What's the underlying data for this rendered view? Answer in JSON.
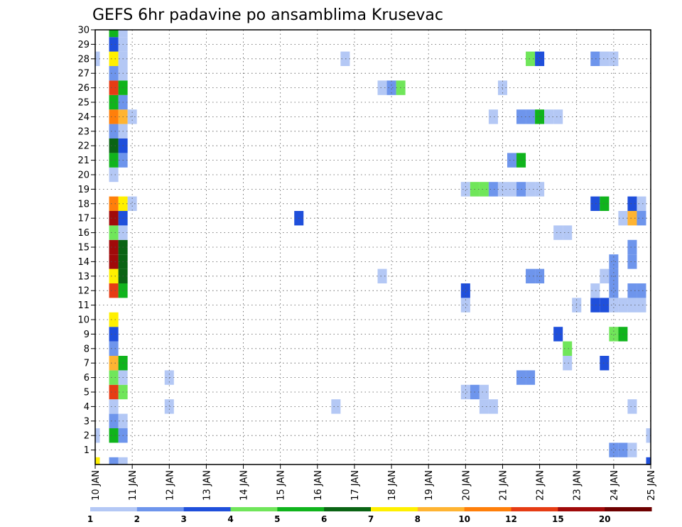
{
  "chart_data": {
    "type": "heatmap",
    "title": "GEFS 6hr padavine po ansamblima Krusevac",
    "xlabel": "",
    "ylabel": "",
    "x_ticks": [
      "10 JAN",
      "11 JAN",
      "12 JAN",
      "13 JAN",
      "14 JAN",
      "15 JAN",
      "16 JAN",
      "17 JAN",
      "18 JAN",
      "19 JAN",
      "20 JAN",
      "21 JAN",
      "22 JAN",
      "23 JAN",
      "24 JAN",
      "25 JAN"
    ],
    "x_range_days": [
      10,
      25
    ],
    "y_ticks": [
      1,
      2,
      3,
      4,
      5,
      6,
      7,
      8,
      9,
      10,
      11,
      12,
      13,
      14,
      15,
      16,
      17,
      18,
      19,
      20,
      21,
      22,
      23,
      24,
      25,
      26,
      27,
      28,
      29,
      30
    ],
    "y_range": [
      0,
      30
    ],
    "grid": "dotted",
    "time_step_hours": 6,
    "colors": {
      "1": "#b4c8f5",
      "2": "#6e95ec",
      "3": "#1f4fdb",
      "4": "#70e65a",
      "5": "#10b41c",
      "6": "#0a6414",
      "7": "#fff000",
      "8": "#ffb432",
      "10": "#ff7f0a",
      "12": "#e63c14",
      "15": "#a00a0a",
      "20": "#6e0000"
    },
    "legend": {
      "labels": [
        "1",
        "2",
        "3",
        "4",
        "5",
        "6",
        "7",
        "8",
        "10",
        "12",
        "15",
        "20"
      ],
      "colors": [
        "#b4c8f5",
        "#6e95ec",
        "#1f4fdb",
        "#70e65a",
        "#10b41c",
        "#0a6414",
        "#fff000",
        "#ffb432",
        "#ff7f0a",
        "#e63c14",
        "#a00a0a",
        "#6e0000"
      ]
    },
    "cells": [
      {
        "member": 0,
        "day": 10.0,
        "level": "7"
      },
      {
        "member": 0,
        "day": 10.5,
        "level": "2"
      },
      {
        "member": 0,
        "day": 10.75,
        "level": "1"
      },
      {
        "member": 0,
        "day": 25.0,
        "level": "3"
      },
      {
        "member": 1,
        "day": 24.0,
        "level": "2"
      },
      {
        "member": 1,
        "day": 24.25,
        "level": "2"
      },
      {
        "member": 1,
        "day": 24.5,
        "level": "1"
      },
      {
        "member": 2,
        "day": 10.0,
        "level": "1"
      },
      {
        "member": 2,
        "day": 10.5,
        "level": "5"
      },
      {
        "member": 2,
        "day": 10.75,
        "level": "2"
      },
      {
        "member": 2,
        "day": 25.0,
        "level": "1"
      },
      {
        "member": 3,
        "day": 10.5,
        "level": "2"
      },
      {
        "member": 3,
        "day": 10.75,
        "level": "1"
      },
      {
        "member": 4,
        "day": 10.5,
        "level": "1"
      },
      {
        "member": 4,
        "day": 12.0,
        "level": "1"
      },
      {
        "member": 4,
        "day": 16.5,
        "level": "1"
      },
      {
        "member": 4,
        "day": 20.5,
        "level": "1"
      },
      {
        "member": 4,
        "day": 20.75,
        "level": "1"
      },
      {
        "member": 4,
        "day": 24.5,
        "level": "1"
      },
      {
        "member": 5,
        "day": 10.5,
        "level": "12"
      },
      {
        "member": 5,
        "day": 10.75,
        "level": "4"
      },
      {
        "member": 5,
        "day": 20.0,
        "level": "1"
      },
      {
        "member": 5,
        "day": 20.25,
        "level": "2"
      },
      {
        "member": 5,
        "day": 20.5,
        "level": "1"
      },
      {
        "member": 6,
        "day": 10.5,
        "level": "4"
      },
      {
        "member": 6,
        "day": 10.75,
        "level": "1"
      },
      {
        "member": 6,
        "day": 12.0,
        "level": "1"
      },
      {
        "member": 6,
        "day": 21.5,
        "level": "2"
      },
      {
        "member": 6,
        "day": 21.75,
        "level": "2"
      },
      {
        "member": 7,
        "day": 10.5,
        "level": "8"
      },
      {
        "member": 7,
        "day": 10.75,
        "level": "5"
      },
      {
        "member": 7,
        "day": 22.75,
        "level": "1"
      },
      {
        "member": 7,
        "day": 23.75,
        "level": "3"
      },
      {
        "member": 8,
        "day": 10.5,
        "level": "2"
      },
      {
        "member": 8,
        "day": 22.75,
        "level": "4"
      },
      {
        "member": 9,
        "day": 10.5,
        "level": "3"
      },
      {
        "member": 9,
        "day": 22.5,
        "level": "3"
      },
      {
        "member": 9,
        "day": 24.0,
        "level": "4"
      },
      {
        "member": 9,
        "day": 24.25,
        "level": "5"
      },
      {
        "member": 10,
        "day": 10.5,
        "level": "7"
      },
      {
        "member": 11,
        "day": 20.0,
        "level": "1"
      },
      {
        "member": 11,
        "day": 23.0,
        "level": "1"
      },
      {
        "member": 11,
        "day": 23.5,
        "level": "3"
      },
      {
        "member": 11,
        "day": 23.75,
        "level": "3"
      },
      {
        "member": 11,
        "day": 24.0,
        "level": "1"
      },
      {
        "member": 11,
        "day": 24.25,
        "level": "1"
      },
      {
        "member": 11,
        "day": 24.5,
        "level": "1"
      },
      {
        "member": 11,
        "day": 24.75,
        "level": "1"
      },
      {
        "member": 12,
        "day": 10.5,
        "level": "12"
      },
      {
        "member": 12,
        "day": 10.75,
        "level": "5"
      },
      {
        "member": 12,
        "day": 20.0,
        "level": "3"
      },
      {
        "member": 12,
        "day": 23.5,
        "level": "1"
      },
      {
        "member": 12,
        "day": 24.0,
        "level": "2"
      },
      {
        "member": 12,
        "day": 24.5,
        "level": "2"
      },
      {
        "member": 12,
        "day": 24.75,
        "level": "2"
      },
      {
        "member": 13,
        "day": 10.5,
        "level": "7"
      },
      {
        "member": 13,
        "day": 10.75,
        "level": "6"
      },
      {
        "member": 13,
        "day": 17.75,
        "level": "1"
      },
      {
        "member": 13,
        "day": 21.75,
        "level": "2"
      },
      {
        "member": 13,
        "day": 22.0,
        "level": "2"
      },
      {
        "member": 13,
        "day": 23.75,
        "level": "1"
      },
      {
        "member": 13,
        "day": 24.0,
        "level": "2"
      },
      {
        "member": 14,
        "day": 10.5,
        "level": "15"
      },
      {
        "member": 14,
        "day": 10.75,
        "level": "6"
      },
      {
        "member": 14,
        "day": 24.0,
        "level": "2"
      },
      {
        "member": 14,
        "day": 24.5,
        "level": "2"
      },
      {
        "member": 15,
        "day": 10.5,
        "level": "15"
      },
      {
        "member": 15,
        "day": 10.75,
        "level": "6"
      },
      {
        "member": 15,
        "day": 24.5,
        "level": "2"
      },
      {
        "member": 16,
        "day": 10.5,
        "level": "4"
      },
      {
        "member": 16,
        "day": 10.75,
        "level": "1"
      },
      {
        "member": 16,
        "day": 22.5,
        "level": "1"
      },
      {
        "member": 16,
        "day": 22.75,
        "level": "1"
      },
      {
        "member": 17,
        "day": 10.5,
        "level": "15"
      },
      {
        "member": 17,
        "day": 10.75,
        "level": "3"
      },
      {
        "member": 17,
        "day": 15.5,
        "level": "3"
      },
      {
        "member": 17,
        "day": 24.25,
        "level": "1"
      },
      {
        "member": 17,
        "day": 24.5,
        "level": "8"
      },
      {
        "member": 17,
        "day": 24.75,
        "level": "2"
      },
      {
        "member": 18,
        "day": 10.5,
        "level": "10"
      },
      {
        "member": 18,
        "day": 10.75,
        "level": "7"
      },
      {
        "member": 18,
        "day": 11.0,
        "level": "1"
      },
      {
        "member": 18,
        "day": 23.5,
        "level": "3"
      },
      {
        "member": 18,
        "day": 23.75,
        "level": "5"
      },
      {
        "member": 18,
        "day": 24.5,
        "level": "3"
      },
      {
        "member": 18,
        "day": 24.75,
        "level": "1"
      },
      {
        "member": 19,
        "day": 20.0,
        "level": "1"
      },
      {
        "member": 19,
        "day": 20.25,
        "level": "4"
      },
      {
        "member": 19,
        "day": 20.5,
        "level": "4"
      },
      {
        "member": 19,
        "day": 20.75,
        "level": "2"
      },
      {
        "member": 19,
        "day": 21.0,
        "level": "1"
      },
      {
        "member": 19,
        "day": 21.25,
        "level": "1"
      },
      {
        "member": 19,
        "day": 21.5,
        "level": "2"
      },
      {
        "member": 19,
        "day": 21.75,
        "level": "1"
      },
      {
        "member": 19,
        "day": 22.0,
        "level": "1"
      },
      {
        "member": 20,
        "day": 10.5,
        "level": "1"
      },
      {
        "member": 21,
        "day": 10.5,
        "level": "5"
      },
      {
        "member": 21,
        "day": 10.75,
        "level": "2"
      },
      {
        "member": 21,
        "day": 21.25,
        "level": "2"
      },
      {
        "member": 21,
        "day": 21.5,
        "level": "5"
      },
      {
        "member": 22,
        "day": 10.5,
        "level": "6"
      },
      {
        "member": 22,
        "day": 10.75,
        "level": "3"
      },
      {
        "member": 23,
        "day": 10.5,
        "level": "2"
      },
      {
        "member": 23,
        "day": 10.75,
        "level": "1"
      },
      {
        "member": 24,
        "day": 10.5,
        "level": "10"
      },
      {
        "member": 24,
        "day": 10.75,
        "level": "8"
      },
      {
        "member": 24,
        "day": 11.0,
        "level": "1"
      },
      {
        "member": 24,
        "day": 20.75,
        "level": "1"
      },
      {
        "member": 24,
        "day": 21.5,
        "level": "2"
      },
      {
        "member": 24,
        "day": 21.75,
        "level": "2"
      },
      {
        "member": 24,
        "day": 22.0,
        "level": "5"
      },
      {
        "member": 24,
        "day": 22.25,
        "level": "1"
      },
      {
        "member": 24,
        "day": 22.5,
        "level": "1"
      },
      {
        "member": 25,
        "day": 10.5,
        "level": "5"
      },
      {
        "member": 25,
        "day": 10.75,
        "level": "2"
      },
      {
        "member": 26,
        "day": 10.5,
        "level": "12"
      },
      {
        "member": 26,
        "day": 10.75,
        "level": "5"
      },
      {
        "member": 26,
        "day": 17.75,
        "level": "1"
      },
      {
        "member": 26,
        "day": 18.0,
        "level": "2"
      },
      {
        "member": 26,
        "day": 18.25,
        "level": "4"
      },
      {
        "member": 26,
        "day": 21.0,
        "level": "1"
      },
      {
        "member": 27,
        "day": 10.5,
        "level": "2"
      },
      {
        "member": 27,
        "day": 10.75,
        "level": "1"
      },
      {
        "member": 28,
        "day": 10.0,
        "level": "1"
      },
      {
        "member": 28,
        "day": 10.5,
        "level": "7"
      },
      {
        "member": 28,
        "day": 10.75,
        "level": "1"
      },
      {
        "member": 28,
        "day": 16.75,
        "level": "1"
      },
      {
        "member": 28,
        "day": 21.75,
        "level": "4"
      },
      {
        "member": 28,
        "day": 22.0,
        "level": "3"
      },
      {
        "member": 28,
        "day": 23.5,
        "level": "2"
      },
      {
        "member": 28,
        "day": 23.75,
        "level": "1"
      },
      {
        "member": 28,
        "day": 24.0,
        "level": "1"
      },
      {
        "member": 29,
        "day": 10.5,
        "level": "3"
      },
      {
        "member": 29,
        "day": 10.75,
        "level": "1"
      },
      {
        "member": 30,
        "day": 10.5,
        "level": "5"
      },
      {
        "member": 30,
        "day": 10.75,
        "level": "1"
      }
    ]
  }
}
